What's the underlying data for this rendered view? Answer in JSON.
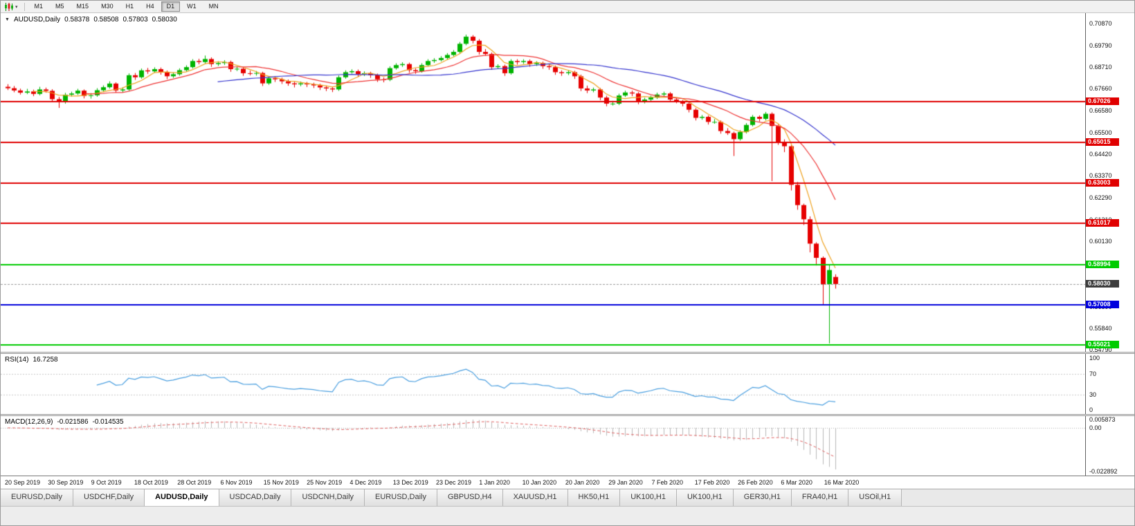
{
  "toolbar": {
    "timeframes": [
      "M1",
      "M5",
      "M15",
      "M30",
      "H1",
      "H4",
      "D1",
      "W1",
      "MN"
    ],
    "active_timeframe": "D1"
  },
  "chart": {
    "symbol_period": "AUDUSD,Daily",
    "open": "0.58378",
    "high": "0.58508",
    "low": "0.57803",
    "close": "0.58030"
  },
  "indicators": {
    "rsi": {
      "name": "RSI(14)",
      "value": "16.7258",
      "axis_labels": [
        "100",
        "70",
        "30",
        "0"
      ],
      "levels": [
        70,
        30
      ]
    },
    "macd": {
      "name": "MACD(12,26,9)",
      "value_main": "-0.021586",
      "value_signal": "-0.014535",
      "axis_labels": [
        "0.005873",
        "0.00",
        "-0.022892"
      ]
    }
  },
  "tabs": {
    "active_index": 2,
    "items": [
      "EURUSD,Daily",
      "USDCHF,Daily",
      "AUDUSD,Daily",
      "USDCAD,Daily",
      "USDCNH,Daily",
      "EURUSD,Daily",
      "GBPUSD,H4",
      "XAUUSD,H1",
      "HK50,H1",
      "UK100,H1",
      "UK100,H1",
      "GER30,H1",
      "FRA40,H1",
      "USOil,H1"
    ]
  },
  "colors": {
    "bull": "#00b400",
    "bear": "#e60000",
    "ma_fast": "#efa320",
    "ma_mid": "#ef3535",
    "ma_slow": "#3535cf",
    "rsi_line": "#4a9fe0",
    "rsi_levels": "#c8c8c8",
    "macd_hist": "#b8b8b8",
    "macd_signal": "#e06060",
    "current_line": "#9a9a9a"
  },
  "chart_data": {
    "type": "candlestick",
    "symbol": "AUDUSD",
    "period": "Daily",
    "price_range_top": 0.7087,
    "price_range_bottom": 0.5479,
    "price_axis_ticks": [
      "0.70870",
      "0.69790",
      "0.68710",
      "0.67660",
      "0.66580",
      "0.65500",
      "0.64420",
      "0.63370",
      "0.62290",
      "0.61210",
      "0.60130",
      "0.59050",
      "0.57970",
      "0.56890",
      "0.55840",
      "0.54790"
    ],
    "x_axis_labels": [
      "20 Sep 2019",
      "30 Sep 2019",
      "9 Oct 2019",
      "18 Oct 2019",
      "28 Oct 2019",
      "6 Nov 2019",
      "15 Nov 2019",
      "25 Nov 2019",
      "4 Dec 2019",
      "13 Dec 2019",
      "23 Dec 2019",
      "1 Jan 2020",
      "10 Jan 2020",
      "20 Jan 2020",
      "29 Jan 2020",
      "7 Feb 2020",
      "17 Feb 2020",
      "26 Feb 2020",
      "6 Mar 2020",
      "16 Mar 2020"
    ],
    "moving_averages": [
      {
        "period": 5,
        "color_key": "ma_fast"
      },
      {
        "period": 13,
        "color_key": "ma_mid"
      },
      {
        "period": 34,
        "color_key": "ma_slow"
      }
    ],
    "hlines": [
      {
        "price": 0.67026,
        "label": "0.67026",
        "color": "#e00000"
      },
      {
        "price": 0.65015,
        "label": "0.65015",
        "color": "#e00000"
      },
      {
        "price": 0.63003,
        "label": "0.63003",
        "color": "#e00000"
      },
      {
        "price": 0.61017,
        "label": "0.61017",
        "color": "#e00000"
      },
      {
        "price": 0.58994,
        "label": "0.58994",
        "color": "#00cc00"
      },
      {
        "price": 0.57008,
        "label": "0.57008",
        "color": "#0000dd"
      },
      {
        "price": 0.55021,
        "label": "0.55021",
        "color": "#00cc00"
      }
    ],
    "current_price": {
      "price": 0.5803,
      "label": "0.58030",
      "tag_color": "#3c3c3c"
    },
    "candles": [
      [
        0.6775,
        0.6788,
        0.6759,
        0.6768
      ],
      [
        0.6768,
        0.6779,
        0.6748,
        0.6757
      ],
      [
        0.6757,
        0.6766,
        0.6737,
        0.6746
      ],
      [
        0.6746,
        0.6765,
        0.6739,
        0.6752
      ],
      [
        0.6752,
        0.6761,
        0.6729,
        0.674
      ],
      [
        0.674,
        0.6775,
        0.6733,
        0.6762
      ],
      [
        0.6762,
        0.6771,
        0.6746,
        0.6755
      ],
      [
        0.6755,
        0.6763,
        0.6701,
        0.6714
      ],
      [
        0.6714,
        0.6725,
        0.6671,
        0.67
      ],
      [
        0.67,
        0.6745,
        0.6692,
        0.6736
      ],
      [
        0.6736,
        0.6751,
        0.6727,
        0.6742
      ],
      [
        0.6742,
        0.6765,
        0.6735,
        0.6756
      ],
      [
        0.6756,
        0.6762,
        0.6718,
        0.673
      ],
      [
        0.673,
        0.6744,
        0.6717,
        0.6733
      ],
      [
        0.6733,
        0.6768,
        0.6726,
        0.6758
      ],
      [
        0.6758,
        0.6782,
        0.6751,
        0.6773
      ],
      [
        0.6773,
        0.6802,
        0.6766,
        0.6791
      ],
      [
        0.6791,
        0.6797,
        0.6746,
        0.6757
      ],
      [
        0.6757,
        0.6773,
        0.6748,
        0.6762
      ],
      [
        0.6762,
        0.6841,
        0.6755,
        0.6832
      ],
      [
        0.6832,
        0.6843,
        0.6809,
        0.6822
      ],
      [
        0.6822,
        0.6865,
        0.6815,
        0.6856
      ],
      [
        0.6856,
        0.6868,
        0.6839,
        0.6851
      ],
      [
        0.6851,
        0.6871,
        0.6844,
        0.6862
      ],
      [
        0.6862,
        0.687,
        0.6835,
        0.6846
      ],
      [
        0.6846,
        0.6855,
        0.6813,
        0.6827
      ],
      [
        0.6827,
        0.6846,
        0.6819,
        0.6837
      ],
      [
        0.6837,
        0.6866,
        0.683,
        0.6857
      ],
      [
        0.6857,
        0.6881,
        0.685,
        0.6872
      ],
      [
        0.6872,
        0.6911,
        0.6865,
        0.6902
      ],
      [
        0.6902,
        0.6913,
        0.6886,
        0.6897
      ],
      [
        0.6897,
        0.6929,
        0.689,
        0.6912
      ],
      [
        0.6912,
        0.692,
        0.6873,
        0.6887
      ],
      [
        0.6887,
        0.6901,
        0.6878,
        0.6892
      ],
      [
        0.6892,
        0.6906,
        0.6883,
        0.6897
      ],
      [
        0.6897,
        0.6904,
        0.6849,
        0.6862
      ],
      [
        0.6862,
        0.6876,
        0.6853,
        0.6864
      ],
      [
        0.6864,
        0.6871,
        0.6829,
        0.6842
      ],
      [
        0.6842,
        0.6855,
        0.6831,
        0.684
      ],
      [
        0.684,
        0.6853,
        0.683,
        0.6843
      ],
      [
        0.6843,
        0.6849,
        0.6779,
        0.6792
      ],
      [
        0.6792,
        0.6826,
        0.6785,
        0.6817
      ],
      [
        0.6817,
        0.6826,
        0.6799,
        0.6812
      ],
      [
        0.6812,
        0.682,
        0.6789,
        0.6802
      ],
      [
        0.6802,
        0.6811,
        0.678,
        0.6792
      ],
      [
        0.6792,
        0.68,
        0.6772,
        0.6787
      ],
      [
        0.6787,
        0.6801,
        0.6778,
        0.6792
      ],
      [
        0.6792,
        0.6799,
        0.6774,
        0.6787
      ],
      [
        0.6787,
        0.6795,
        0.6769,
        0.6782
      ],
      [
        0.6782,
        0.679,
        0.6759,
        0.6772
      ],
      [
        0.6772,
        0.6781,
        0.6754,
        0.6767
      ],
      [
        0.6767,
        0.6775,
        0.6749,
        0.6762
      ],
      [
        0.6762,
        0.6831,
        0.6755,
        0.6822
      ],
      [
        0.6822,
        0.6856,
        0.6815,
        0.6847
      ],
      [
        0.6847,
        0.6861,
        0.684,
        0.6852
      ],
      [
        0.6852,
        0.686,
        0.6824,
        0.6837
      ],
      [
        0.6837,
        0.6851,
        0.6828,
        0.6842
      ],
      [
        0.6842,
        0.6849,
        0.6819,
        0.6832
      ],
      [
        0.6832,
        0.684,
        0.6799,
        0.6812
      ],
      [
        0.6812,
        0.6821,
        0.6797,
        0.681
      ],
      [
        0.681,
        0.6876,
        0.6803,
        0.6867
      ],
      [
        0.6867,
        0.6891,
        0.686,
        0.6882
      ],
      [
        0.6882,
        0.6896,
        0.6873,
        0.6887
      ],
      [
        0.6887,
        0.6894,
        0.6844,
        0.6857
      ],
      [
        0.6857,
        0.6866,
        0.6839,
        0.6852
      ],
      [
        0.6852,
        0.6891,
        0.6845,
        0.6882
      ],
      [
        0.6882,
        0.6911,
        0.6875,
        0.6902
      ],
      [
        0.6902,
        0.6916,
        0.6893,
        0.6907
      ],
      [
        0.6907,
        0.6926,
        0.69,
        0.6917
      ],
      [
        0.6917,
        0.6941,
        0.691,
        0.6932
      ],
      [
        0.6932,
        0.6956,
        0.6925,
        0.6947
      ],
      [
        0.6947,
        0.6996,
        0.694,
        0.6987
      ],
      [
        0.6987,
        0.7032,
        0.698,
        0.7022
      ],
      [
        0.7022,
        0.703,
        0.6989,
        0.7002
      ],
      [
        0.7002,
        0.701,
        0.6934,
        0.6947
      ],
      [
        0.6947,
        0.6961,
        0.6928,
        0.6937
      ],
      [
        0.6937,
        0.6944,
        0.6859,
        0.6872
      ],
      [
        0.6872,
        0.6886,
        0.6863,
        0.6877
      ],
      [
        0.6877,
        0.6884,
        0.6829,
        0.6842
      ],
      [
        0.6842,
        0.6911,
        0.6835,
        0.6902
      ],
      [
        0.6902,
        0.6911,
        0.6884,
        0.6897
      ],
      [
        0.6897,
        0.6911,
        0.6888,
        0.6902
      ],
      [
        0.6902,
        0.691,
        0.6874,
        0.6887
      ],
      [
        0.6887,
        0.6901,
        0.6878,
        0.6892
      ],
      [
        0.6892,
        0.6899,
        0.6864,
        0.6877
      ],
      [
        0.6877,
        0.6886,
        0.6859,
        0.6872
      ],
      [
        0.6872,
        0.688,
        0.6834,
        0.6847
      ],
      [
        0.6847,
        0.6856,
        0.6829,
        0.6842
      ],
      [
        0.6842,
        0.6856,
        0.6833,
        0.6847
      ],
      [
        0.6847,
        0.6854,
        0.6814,
        0.6827
      ],
      [
        0.6827,
        0.6835,
        0.6754,
        0.6767
      ],
      [
        0.6767,
        0.6781,
        0.6744,
        0.6757
      ],
      [
        0.6757,
        0.6771,
        0.6748,
        0.6762
      ],
      [
        0.6762,
        0.6769,
        0.6709,
        0.6722
      ],
      [
        0.6722,
        0.6731,
        0.6679,
        0.6692
      ],
      [
        0.6692,
        0.6706,
        0.6683,
        0.6692
      ],
      [
        0.6692,
        0.6741,
        0.6685,
        0.6732
      ],
      [
        0.6732,
        0.6756,
        0.6725,
        0.6747
      ],
      [
        0.6747,
        0.6756,
        0.6729,
        0.6742
      ],
      [
        0.6742,
        0.6749,
        0.6689,
        0.6702
      ],
      [
        0.6702,
        0.6721,
        0.6693,
        0.6712
      ],
      [
        0.6712,
        0.6731,
        0.6705,
        0.6722
      ],
      [
        0.6722,
        0.6746,
        0.6715,
        0.6737
      ],
      [
        0.6737,
        0.6751,
        0.6728,
        0.6742
      ],
      [
        0.6742,
        0.6749,
        0.6699,
        0.6712
      ],
      [
        0.6712,
        0.6721,
        0.6694,
        0.6702
      ],
      [
        0.6702,
        0.671,
        0.6679,
        0.6692
      ],
      [
        0.6692,
        0.6699,
        0.6649,
        0.6662
      ],
      [
        0.6662,
        0.667,
        0.6609,
        0.6622
      ],
      [
        0.6622,
        0.6636,
        0.6613,
        0.6627
      ],
      [
        0.6627,
        0.6634,
        0.6589,
        0.6602
      ],
      [
        0.6602,
        0.6616,
        0.6593,
        0.6602
      ],
      [
        0.6602,
        0.6609,
        0.6544,
        0.6557
      ],
      [
        0.6557,
        0.6571,
        0.6538,
        0.6547
      ],
      [
        0.6547,
        0.6554,
        0.6434,
        0.6517
      ],
      [
        0.6517,
        0.6561,
        0.651,
        0.6552
      ],
      [
        0.6552,
        0.6596,
        0.6545,
        0.6587
      ],
      [
        0.6587,
        0.6636,
        0.658,
        0.6627
      ],
      [
        0.6627,
        0.6634,
        0.6604,
        0.6617
      ],
      [
        0.6617,
        0.6651,
        0.661,
        0.6642
      ],
      [
        0.6642,
        0.6649,
        0.631,
        0.6582
      ],
      [
        0.6582,
        0.6589,
        0.6489,
        0.6502
      ],
      [
        0.6502,
        0.6516,
        0.6453,
        0.6482
      ],
      [
        0.6482,
        0.6489,
        0.6264,
        0.6292
      ],
      [
        0.6292,
        0.6306,
        0.6169,
        0.6192
      ],
      [
        0.6192,
        0.6199,
        0.6094,
        0.6122
      ],
      [
        0.6122,
        0.6136,
        0.5959,
        0.6002
      ],
      [
        0.6002,
        0.6009,
        0.5894,
        0.5932
      ],
      [
        0.5932,
        0.5939,
        0.5701,
        0.5802
      ],
      [
        0.5802,
        0.5896,
        0.551,
        0.5872
      ],
      [
        0.58378,
        0.58508,
        0.57803,
        0.5803
      ]
    ]
  }
}
